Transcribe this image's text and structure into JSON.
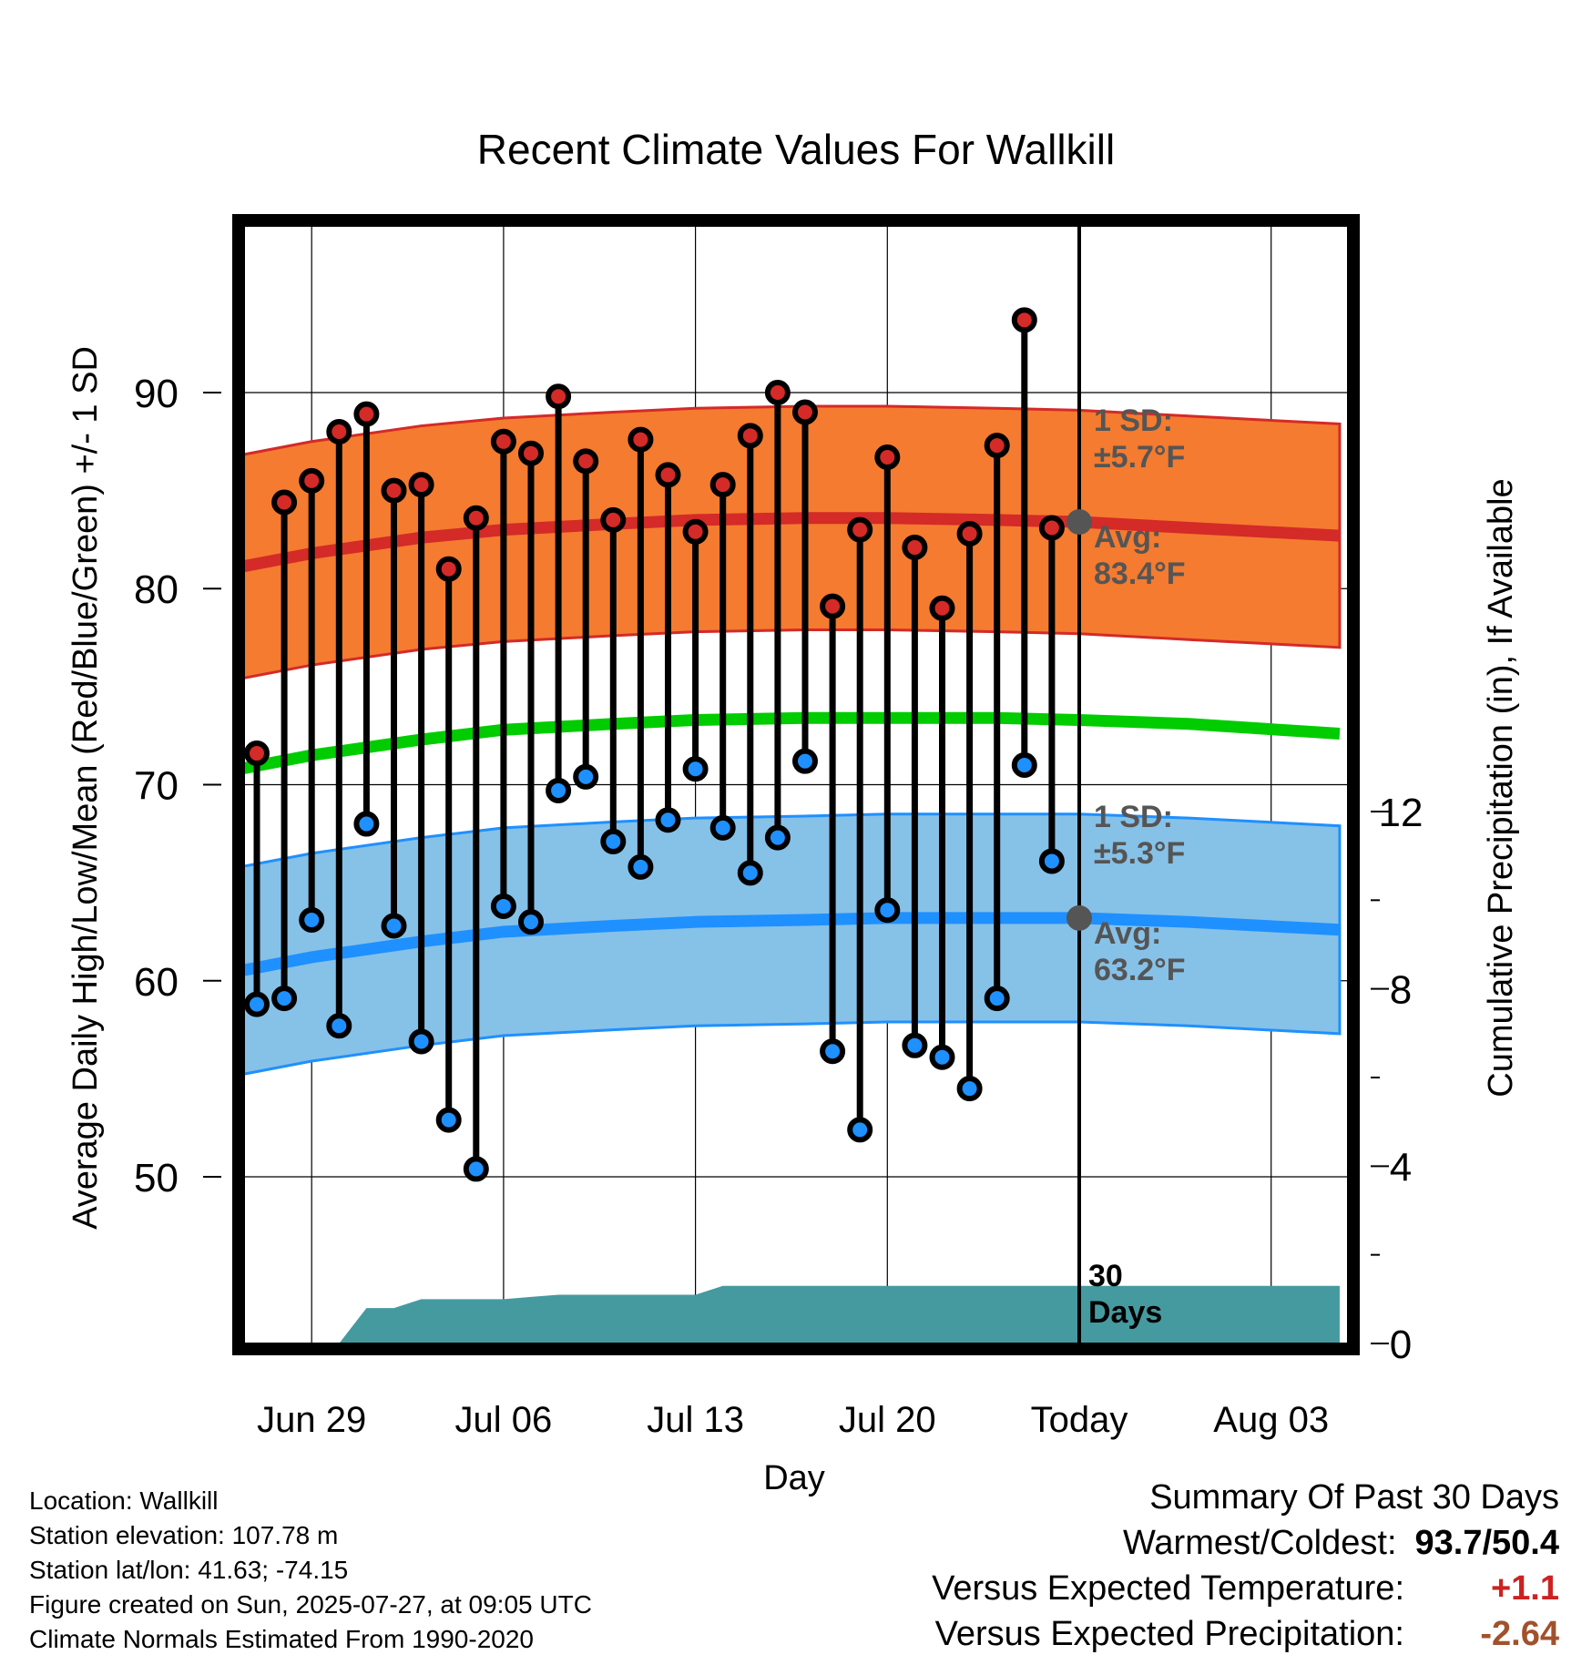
{
  "chart_data": {
    "type": "line",
    "title": "Recent Climate Values For Wallkill",
    "xlabel": "Day",
    "ylabel": "Average Daily High/Low/Mean (Red/Blue/Green) +/- 1 SD",
    "y2label": "Cumulative Precipitation (in), If Available",
    "x_tick_labels": [
      "Jun 29",
      "Jul 06",
      "Jul 13",
      "Jul 20",
      "Today",
      "Aug 03"
    ],
    "x_tick_days": [
      -28,
      -21,
      -14,
      -7,
      0,
      7
    ],
    "x_range_days": [
      -31,
      9.5
    ],
    "ylim": [
      41.5,
      98.5
    ],
    "y_ticks": [
      50,
      60,
      70,
      80,
      90
    ],
    "y2lim": [
      0,
      30
    ],
    "y2_ticks": [
      0,
      4,
      8,
      12
    ],
    "grid": true,
    "obs_days": [
      -30,
      -29,
      -28,
      -27,
      -26,
      -25,
      -24,
      -23,
      -22,
      -21,
      -20,
      -19,
      -18,
      -17,
      -16,
      -15,
      -14,
      -13,
      -12,
      -11,
      -10,
      -9,
      -8,
      -7,
      -6,
      -5,
      -4,
      -3,
      -2,
      -1
    ],
    "highs": [
      71.6,
      84.4,
      85.5,
      88.0,
      88.9,
      85.0,
      85.3,
      81.0,
      83.6,
      87.5,
      86.9,
      89.8,
      86.5,
      83.5,
      87.6,
      85.8,
      82.9,
      85.3,
      87.8,
      90.0,
      89.0,
      79.1,
      83.0,
      86.7,
      82.1,
      79.0,
      82.8,
      87.3,
      93.7,
      83.1
    ],
    "lows": [
      58.8,
      59.1,
      63.1,
      57.7,
      68.0,
      62.8,
      56.9,
      52.9,
      50.4,
      63.8,
      63.0,
      69.7,
      70.4,
      67.1,
      65.8,
      68.2,
      70.8,
      67.8,
      65.5,
      67.3,
      71.2,
      56.4,
      52.4,
      63.6,
      56.7,
      56.1,
      54.5,
      59.1,
      71.0,
      66.1
    ],
    "normals": {
      "days": [
        -31,
        -28,
        -24,
        -21,
        -17,
        -14,
        -10,
        -7,
        -3,
        0,
        4,
        9.5
      ],
      "high_avg": [
        81.0,
        81.8,
        82.6,
        83.0,
        83.3,
        83.5,
        83.6,
        83.6,
        83.5,
        83.4,
        83.1,
        82.7
      ],
      "high_sd": 5.7,
      "low_avg": [
        60.4,
        61.2,
        62.0,
        62.5,
        62.8,
        63.0,
        63.1,
        63.2,
        63.2,
        63.2,
        63.0,
        62.6
      ],
      "low_sd": 5.3,
      "mean_avg": [
        70.7,
        71.5,
        72.3,
        72.8,
        73.1,
        73.3,
        73.4,
        73.4,
        73.4,
        73.3,
        73.1,
        72.6
      ]
    },
    "precip_cumulative": {
      "days": [
        -31,
        -27,
        -26,
        -25,
        -24,
        -23,
        -22,
        -21,
        -20,
        -19,
        -18,
        -17,
        -16,
        -15,
        -14,
        -13,
        -12,
        9.5
      ],
      "values": [
        0.0,
        0.0,
        0.8,
        0.8,
        1.0,
        1.0,
        1.0,
        1.0,
        1.05,
        1.1,
        1.1,
        1.1,
        1.1,
        1.1,
        1.1,
        1.3,
        1.3,
        1.3
      ]
    },
    "annotations": {
      "high_sd_label": "1 SD:",
      "high_sd_value": "±5.7°F",
      "high_avg_label": "Avg:",
      "high_avg_value": "83.4°F",
      "low_sd_label": "1 SD:",
      "low_sd_value": "±5.3°F",
      "low_avg_label": "Avg:",
      "low_avg_value": "63.2°F",
      "days_label_1": "30",
      "days_label_2": "Days"
    },
    "colors": {
      "high_band": "#f47b2f",
      "high_line": "#d42a28",
      "low_band": "#86c1e8",
      "low_line": "#1f90ff",
      "mean_line": "#00cc00",
      "precip": "#459aa0",
      "high_dot": "#d42a28",
      "low_dot": "#1f90ff",
      "avg_marker": "#555555",
      "annotation_text": "#555555"
    }
  },
  "info": {
    "location": "Location: Wallkill",
    "elevation": "Station elevation: 107.78 m",
    "latlon": "Station lat/lon: 41.63; -74.15",
    "created": "Figure created on Sun, 2025-07-27, at 09:05 UTC",
    "normals": "Climate Normals Estimated From 1990-2020"
  },
  "summary": {
    "title": "Summary Of Past 30 Days",
    "warm_cold_label": "Warmest/Coldest:",
    "warm_cold_value": "93.7/50.4",
    "temp_label": "Versus Expected Temperature:",
    "temp_value": "+1.1",
    "temp_color": "#cc2222",
    "precip_label": "Versus Expected Precipitation:",
    "precip_value": "-2.64",
    "precip_color": "#a0522d"
  }
}
